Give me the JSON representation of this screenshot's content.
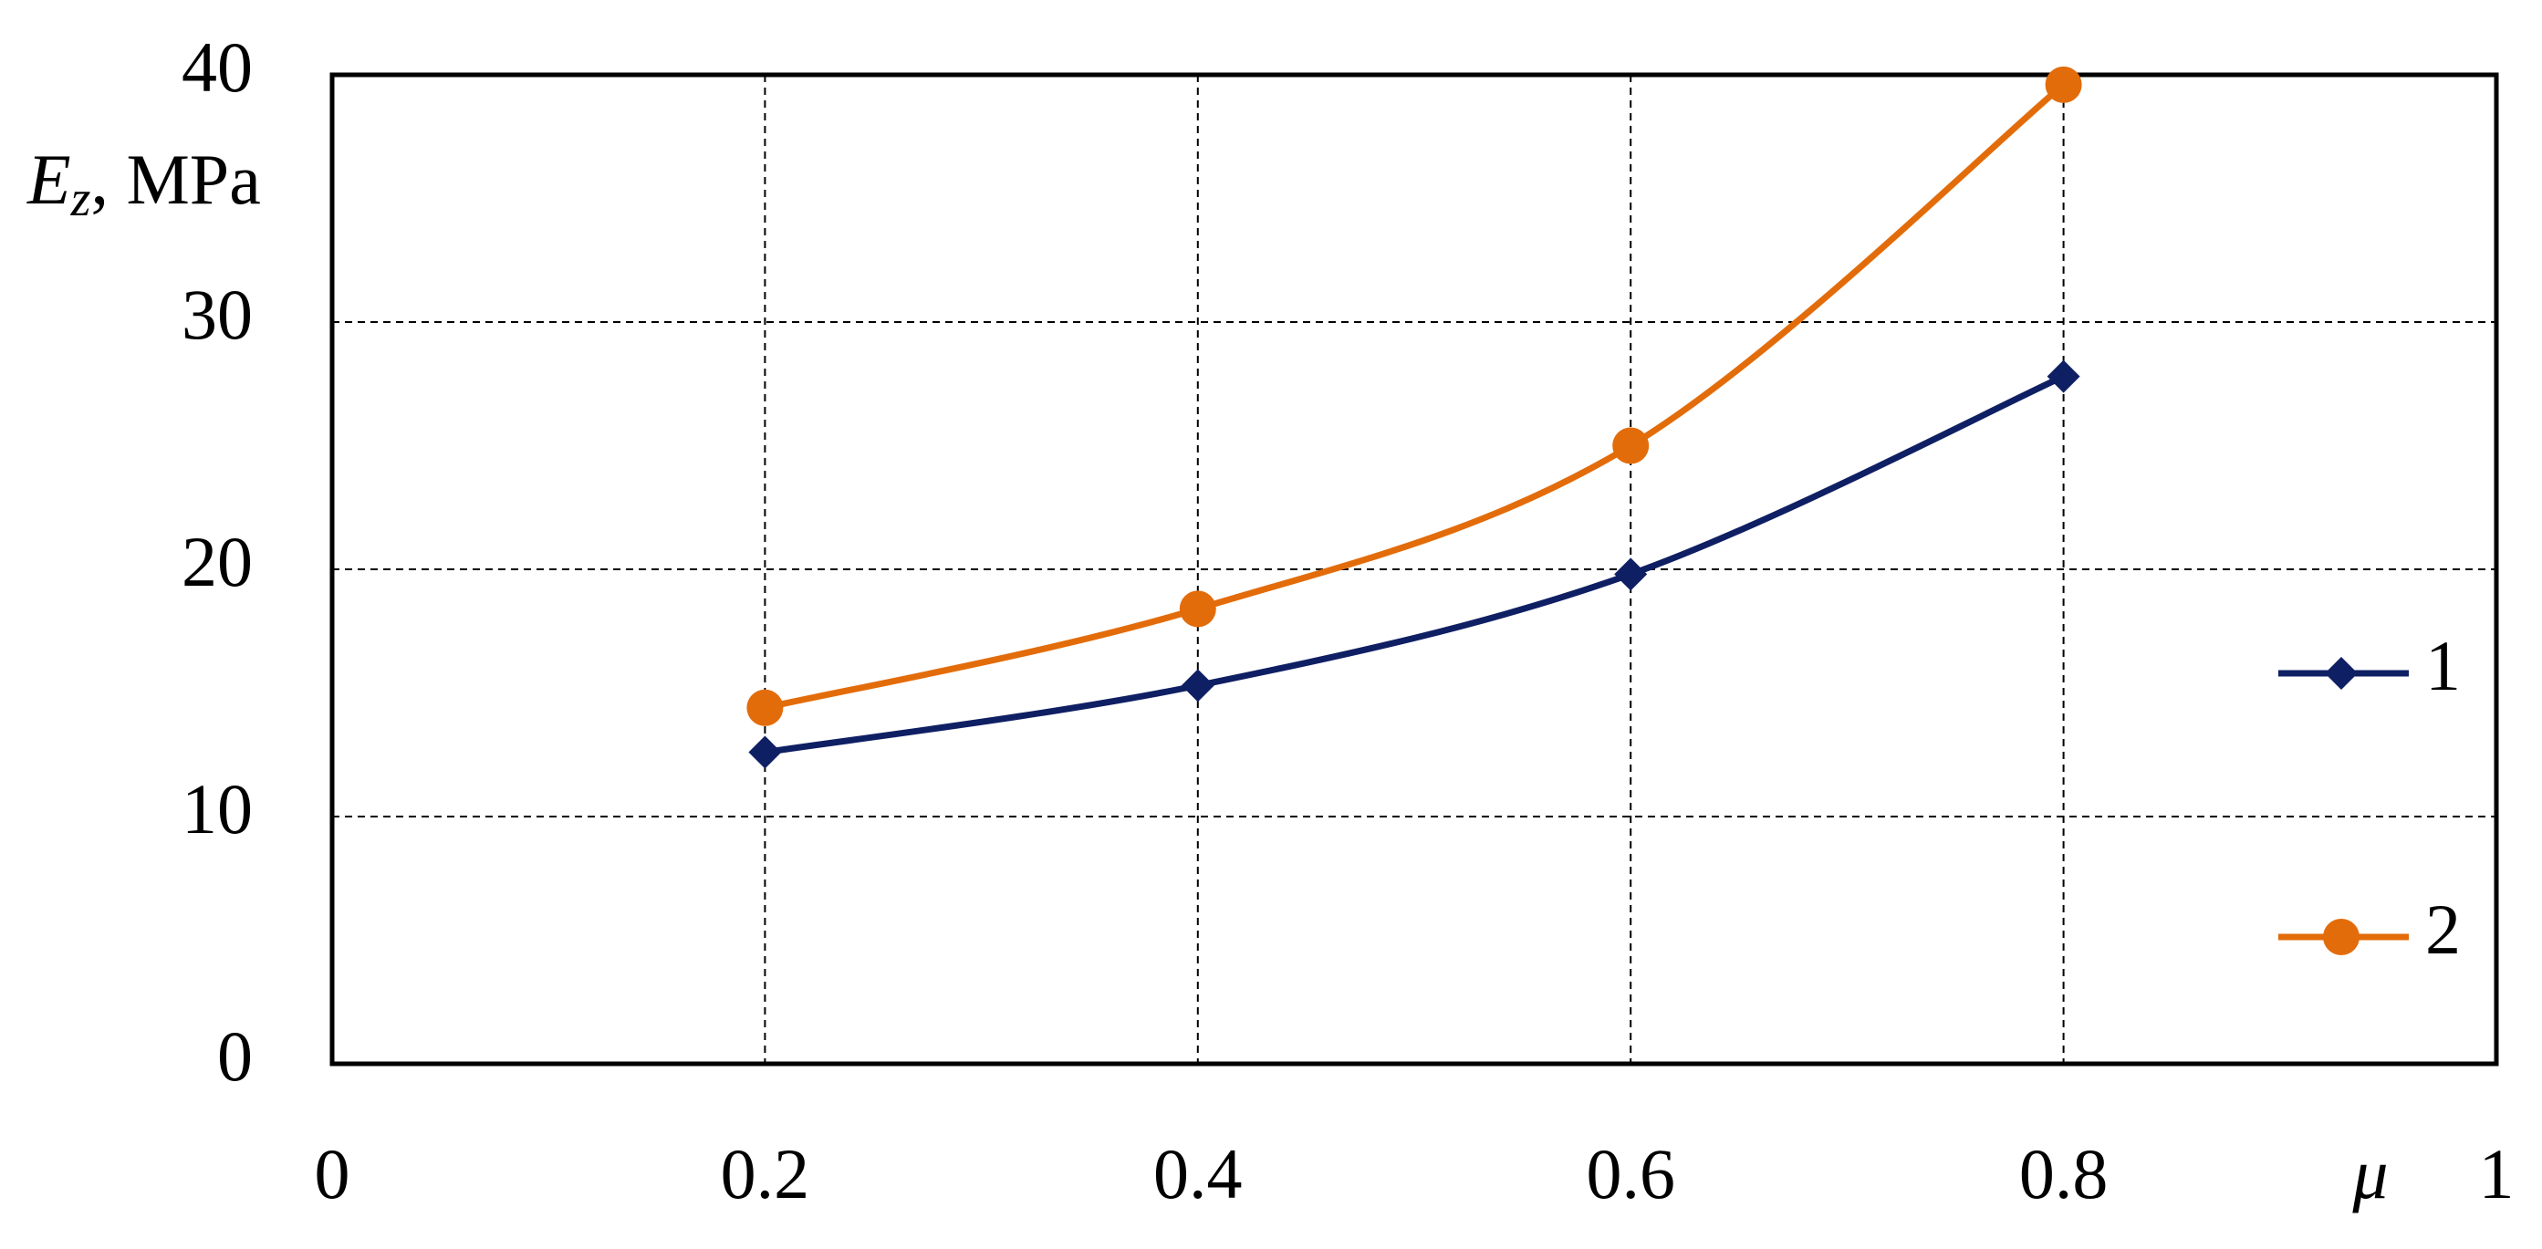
{
  "chart_data": {
    "type": "line",
    "y_label": {
      "main": "E",
      "sub": "z",
      "rest": ", MPa"
    },
    "x_label": "μ",
    "x": [
      0.2,
      0.4,
      0.6,
      0.8
    ],
    "series": [
      {
        "name": "1",
        "color": "#0f1f63",
        "marker": "diamond",
        "values": [
          12.6,
          15.3,
          19.8,
          27.8
        ]
      },
      {
        "name": "2",
        "color": "#e36c0a",
        "marker": "circle",
        "values": [
          14.4,
          18.4,
          25,
          39.6
        ]
      }
    ],
    "xlim": [
      0,
      1
    ],
    "xticks": [
      0,
      0.2,
      0.4,
      0.6,
      0.8,
      1
    ],
    "ylim": [
      0,
      40
    ],
    "yticks": [
      0,
      10,
      20,
      30,
      40
    ],
    "grid": true,
    "smooth": true,
    "legend": "right"
  }
}
